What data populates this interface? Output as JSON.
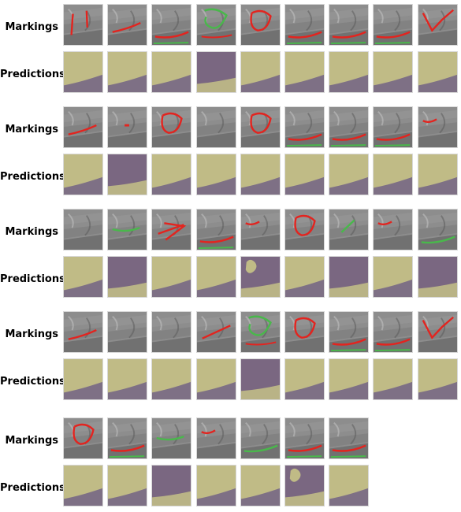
{
  "labels": {
    "markings": "Markings",
    "predictions": "Predictions"
  },
  "colors": {
    "ground_fill": "#b4b493",
    "lower_fill": "#776885",
    "purple_fill": "#7a6781",
    "yellow_fill": "#c0bb86",
    "marking_red": "#e3241f",
    "marking_green": "#49b84b",
    "image_gray": "#8d8d8d"
  },
  "groups": [
    {
      "name": "group-1",
      "markings": [
        "red-vertical",
        "red-curve",
        "red-bottom",
        "green-loop",
        "red-loop",
        "red-bottom",
        "red-bottom",
        "red-bottom",
        "red-v"
      ],
      "predictions": [
        "yellow",
        "yellow",
        "yellow",
        "purple",
        "yellow",
        "yellow",
        "yellow",
        "yellow",
        "yellow"
      ]
    },
    {
      "name": "group-2",
      "markings": [
        "red-curve",
        "red-dot",
        "red-loop",
        "none",
        "red-loop",
        "red-bottom",
        "red-bottom",
        "red-bottom",
        "red-small"
      ],
      "predictions": [
        "yellow",
        "purple",
        "yellow",
        "yellow",
        "yellow",
        "yellow",
        "yellow",
        "yellow",
        "yellow"
      ]
    },
    {
      "name": "group-3",
      "markings": [
        "none",
        "green-curve",
        "red-arrow",
        "red-bottom",
        "red-small",
        "red-loop",
        "green-line",
        "red-small",
        "green-bottom"
      ],
      "predictions": [
        "yellow",
        "purple",
        "yellow",
        "yellow",
        "purple-blob",
        "yellow",
        "purple",
        "yellow",
        "purple"
      ]
    },
    {
      "name": "group-4",
      "markings": [
        "red-curve",
        "none",
        "none",
        "red-line",
        "green-loop",
        "red-loop",
        "red-bottom",
        "red-bottom",
        "red-v"
      ],
      "predictions": [
        "yellow",
        "yellow",
        "yellow",
        "yellow",
        "purple",
        "yellow",
        "yellow",
        "yellow",
        "yellow"
      ]
    },
    {
      "name": "group-5",
      "markings": [
        "red-loop",
        "red-bottom",
        "green-curve",
        "red-small",
        "green-bottom",
        "red-bottom",
        "red-bottom"
      ],
      "predictions": [
        "yellow",
        "yellow",
        "purple",
        "yellow",
        "yellow",
        "purple-blob",
        "yellow"
      ]
    }
  ]
}
